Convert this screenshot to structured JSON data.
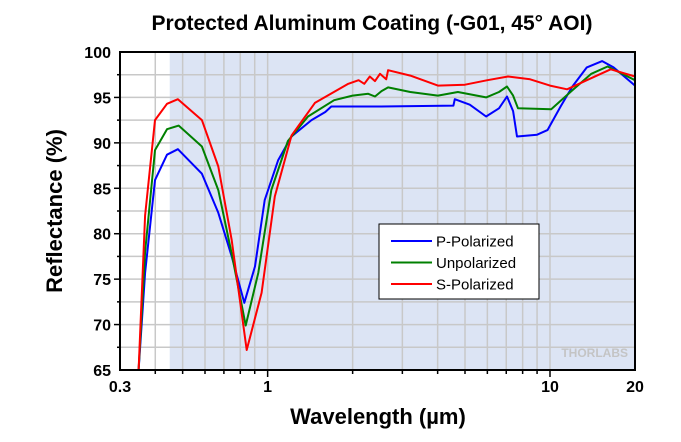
{
  "chart_data": {
    "type": "line",
    "title": "Protected Aluminum Coating (-G01, 45° AOI)",
    "xlabel": "Wavelength (µm)",
    "ylabel": "Reflectance (%)",
    "xscale": "log",
    "xlim": [
      0.3,
      20
    ],
    "ylim": [
      65,
      100
    ],
    "xticks": [
      0.3,
      1,
      10,
      20
    ],
    "xtick_labels": [
      "0.3",
      "1",
      "10",
      "20"
    ],
    "yticks": [
      65,
      70,
      75,
      80,
      85,
      90,
      95,
      100
    ],
    "ytick_labels": [
      "65",
      "70",
      "75",
      "80",
      "85",
      "90",
      "95",
      "100"
    ],
    "grid": true,
    "shaded_range": [
      0.45,
      20
    ],
    "shade_color": "#dce4f4",
    "legend_position": "center-right",
    "watermark": "THORLABS",
    "series": [
      {
        "name": "P-Polarized",
        "color": "#0000ff",
        "x": [
          0.349,
          0.368,
          0.399,
          0.44,
          0.481,
          0.585,
          0.669,
          0.746,
          0.827,
          0.902,
          0.976,
          1.09,
          1.215,
          1.43,
          1.6,
          1.68,
          2.5,
          4.55,
          4.6,
          5.2,
          5.94,
          6.6,
          7.04,
          7.4,
          7.64,
          9.0,
          9.8,
          10.9,
          12.0,
          13.5,
          15.3,
          16.8,
          20
        ],
        "y": [
          65,
          75.7,
          85.9,
          88.7,
          89.3,
          86.6,
          82.3,
          77.5,
          72.4,
          76.4,
          83.7,
          88.1,
          90.7,
          92.5,
          93.4,
          94,
          94,
          94.1,
          94.8,
          94.2,
          92.9,
          93.8,
          95.1,
          93.5,
          90.7,
          90.9,
          91.4,
          94,
          96.2,
          98.3,
          99,
          98.3,
          96.3
        ]
      },
      {
        "name": "Unpolarized",
        "color": "#008000",
        "x": [
          0.349,
          0.368,
          0.399,
          0.44,
          0.484,
          0.585,
          0.669,
          0.746,
          0.836,
          0.927,
          1.03,
          1.18,
          1.39,
          1.72,
          2.0,
          2.27,
          2.4,
          2.53,
          2.67,
          3.2,
          4.01,
          4.72,
          5.94,
          6.6,
          7.04,
          7.4,
          7.7,
          10.1,
          12.0,
          14.0,
          16.0,
          20
        ],
        "y": [
          65,
          78,
          89.2,
          91.5,
          91.9,
          89.6,
          84.8,
          77.8,
          69.9,
          75.7,
          84.8,
          90.2,
          92.9,
          94.7,
          95.2,
          95.4,
          95.1,
          95.7,
          96.1,
          95.6,
          95.2,
          95.6,
          95,
          95.6,
          96.2,
          95.2,
          93.8,
          93.7,
          95.8,
          97.6,
          98.4,
          96.9
        ]
      },
      {
        "name": "S-Polarized",
        "color": "#ff0000",
        "x": [
          0.349,
          0.368,
          0.399,
          0.44,
          0.481,
          0.585,
          0.669,
          0.746,
          0.843,
          0.952,
          1.06,
          1.215,
          1.47,
          1.93,
          2.1,
          2.2,
          2.3,
          2.4,
          2.5,
          2.63,
          2.67,
          3.2,
          4.01,
          5.0,
          6.0,
          7.1,
          8.5,
          10.0,
          11.5,
          13.5,
          16.4,
          20
        ],
        "y": [
          65,
          82,
          92.5,
          94.3,
          94.8,
          92.5,
          87.4,
          79.3,
          67.2,
          73.5,
          84.1,
          90.8,
          94.4,
          96.5,
          96.9,
          96.5,
          97.3,
          96.8,
          97.6,
          97,
          98,
          97.4,
          96.3,
          96.4,
          96.9,
          97.3,
          97,
          96.3,
          95.9,
          96.9,
          98.1,
          97.3
        ]
      }
    ]
  }
}
